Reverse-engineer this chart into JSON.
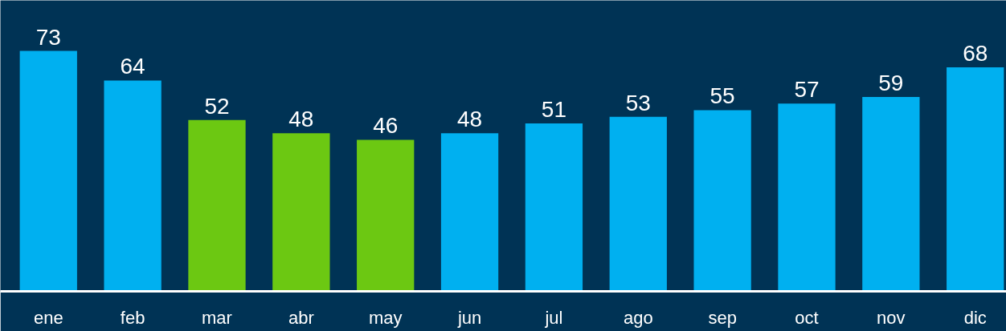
{
  "chart_data": {
    "type": "bar",
    "categories": [
      "ene",
      "feb",
      "mar",
      "abr",
      "may",
      "jun",
      "jul",
      "ago",
      "sep",
      "oct",
      "nov",
      "dic"
    ],
    "values": [
      73,
      64,
      52,
      48,
      46,
      48,
      51,
      53,
      55,
      57,
      59,
      68
    ],
    "colors": [
      "#00b0f0",
      "#00b0f0",
      "#6cc812",
      "#6cc812",
      "#6cc812",
      "#00b0f0",
      "#00b0f0",
      "#00b0f0",
      "#00b0f0",
      "#00b0f0",
      "#00b0f0",
      "#00b0f0"
    ],
    "data_labels": true
  }
}
